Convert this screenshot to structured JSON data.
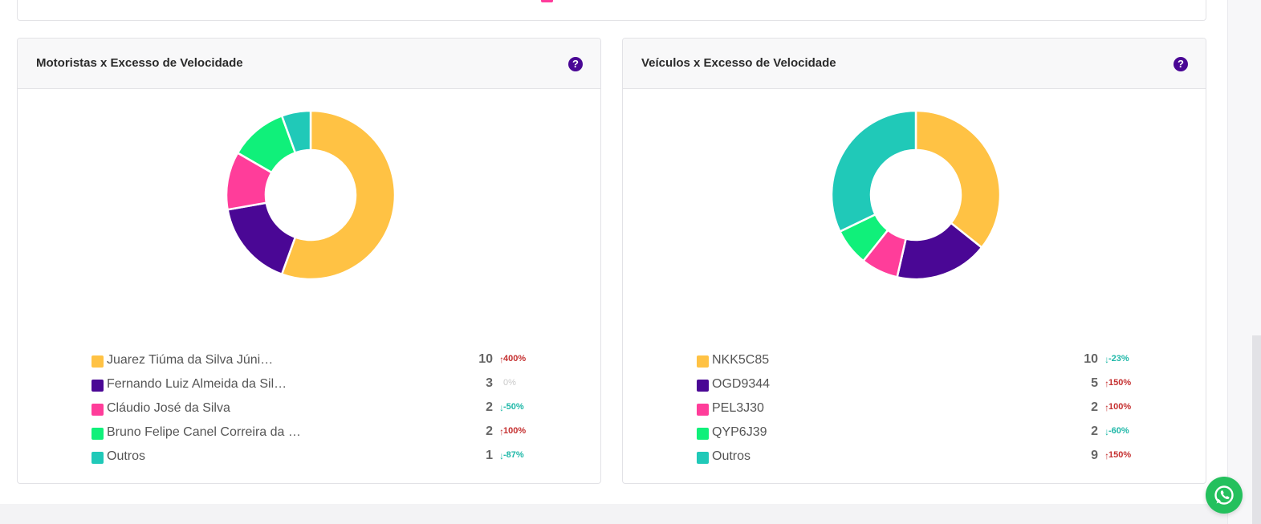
{
  "colors": {
    "purple": "#4a0795",
    "yellow": "#ffc244",
    "pink": "#ff3d9a",
    "green": "#10f07a",
    "teal": "#20c9b8",
    "up": "#c53030",
    "down": "#1fb8a8",
    "whatsapp": "#24c05d"
  },
  "help_icon_glyph": "?",
  "panels": [
    {
      "title": "Motoristas x Excesso de Velocidade",
      "items": [
        {
          "label": "Juarez Tiúma da Silva Júni…",
          "value": 10,
          "change": "400%",
          "trend": "up",
          "color": "#ffc244"
        },
        {
          "label": "Fernando Luiz Almeida da Sil…",
          "value": 3,
          "change": "0%",
          "trend": "none",
          "color": "#4a0795"
        },
        {
          "label": "Cláudio José da Silva",
          "value": 2,
          "change": "-50%",
          "trend": "down",
          "color": "#ff3d9a"
        },
        {
          "label": "Bruno Felipe Canel Correira da Si…",
          "value": 2,
          "change": "100%",
          "trend": "up",
          "color": "#10f07a"
        },
        {
          "label": "Outros",
          "value": 1,
          "change": "-87%",
          "trend": "down",
          "color": "#20c9b8"
        }
      ]
    },
    {
      "title": "Veículos x Excesso de Velocidade",
      "items": [
        {
          "label": "NKK5C85",
          "value": 10,
          "change": "-23%",
          "trend": "down",
          "color": "#ffc244"
        },
        {
          "label": "OGD9344",
          "value": 5,
          "change": "150%",
          "trend": "up",
          "color": "#4a0795"
        },
        {
          "label": "PEL3J30",
          "value": 2,
          "change": "100%",
          "trend": "up",
          "color": "#ff3d9a"
        },
        {
          "label": "QYP6J39",
          "value": 2,
          "change": "-60%",
          "trend": "down",
          "color": "#10f07a"
        },
        {
          "label": "Outros",
          "value": 9,
          "change": "150%",
          "trend": "up",
          "color": "#20c9b8"
        }
      ]
    }
  ],
  "chart_data": [
    {
      "type": "pie",
      "title": "Motoristas x Excesso de Velocidade",
      "categories": [
        "Juarez Tiúma da Silva Júni…",
        "Fernando Luiz Almeida da Sil…",
        "Cláudio José da Silva",
        "Bruno Felipe Canel Correira da Si…",
        "Outros"
      ],
      "values": [
        10,
        3,
        2,
        2,
        1
      ]
    },
    {
      "type": "pie",
      "title": "Veículos x Excesso de Velocidade",
      "categories": [
        "NKK5C85",
        "OGD9344",
        "PEL3J30",
        "QYP6J39",
        "Outros"
      ],
      "values": [
        10,
        5,
        2,
        2,
        9
      ]
    }
  ]
}
